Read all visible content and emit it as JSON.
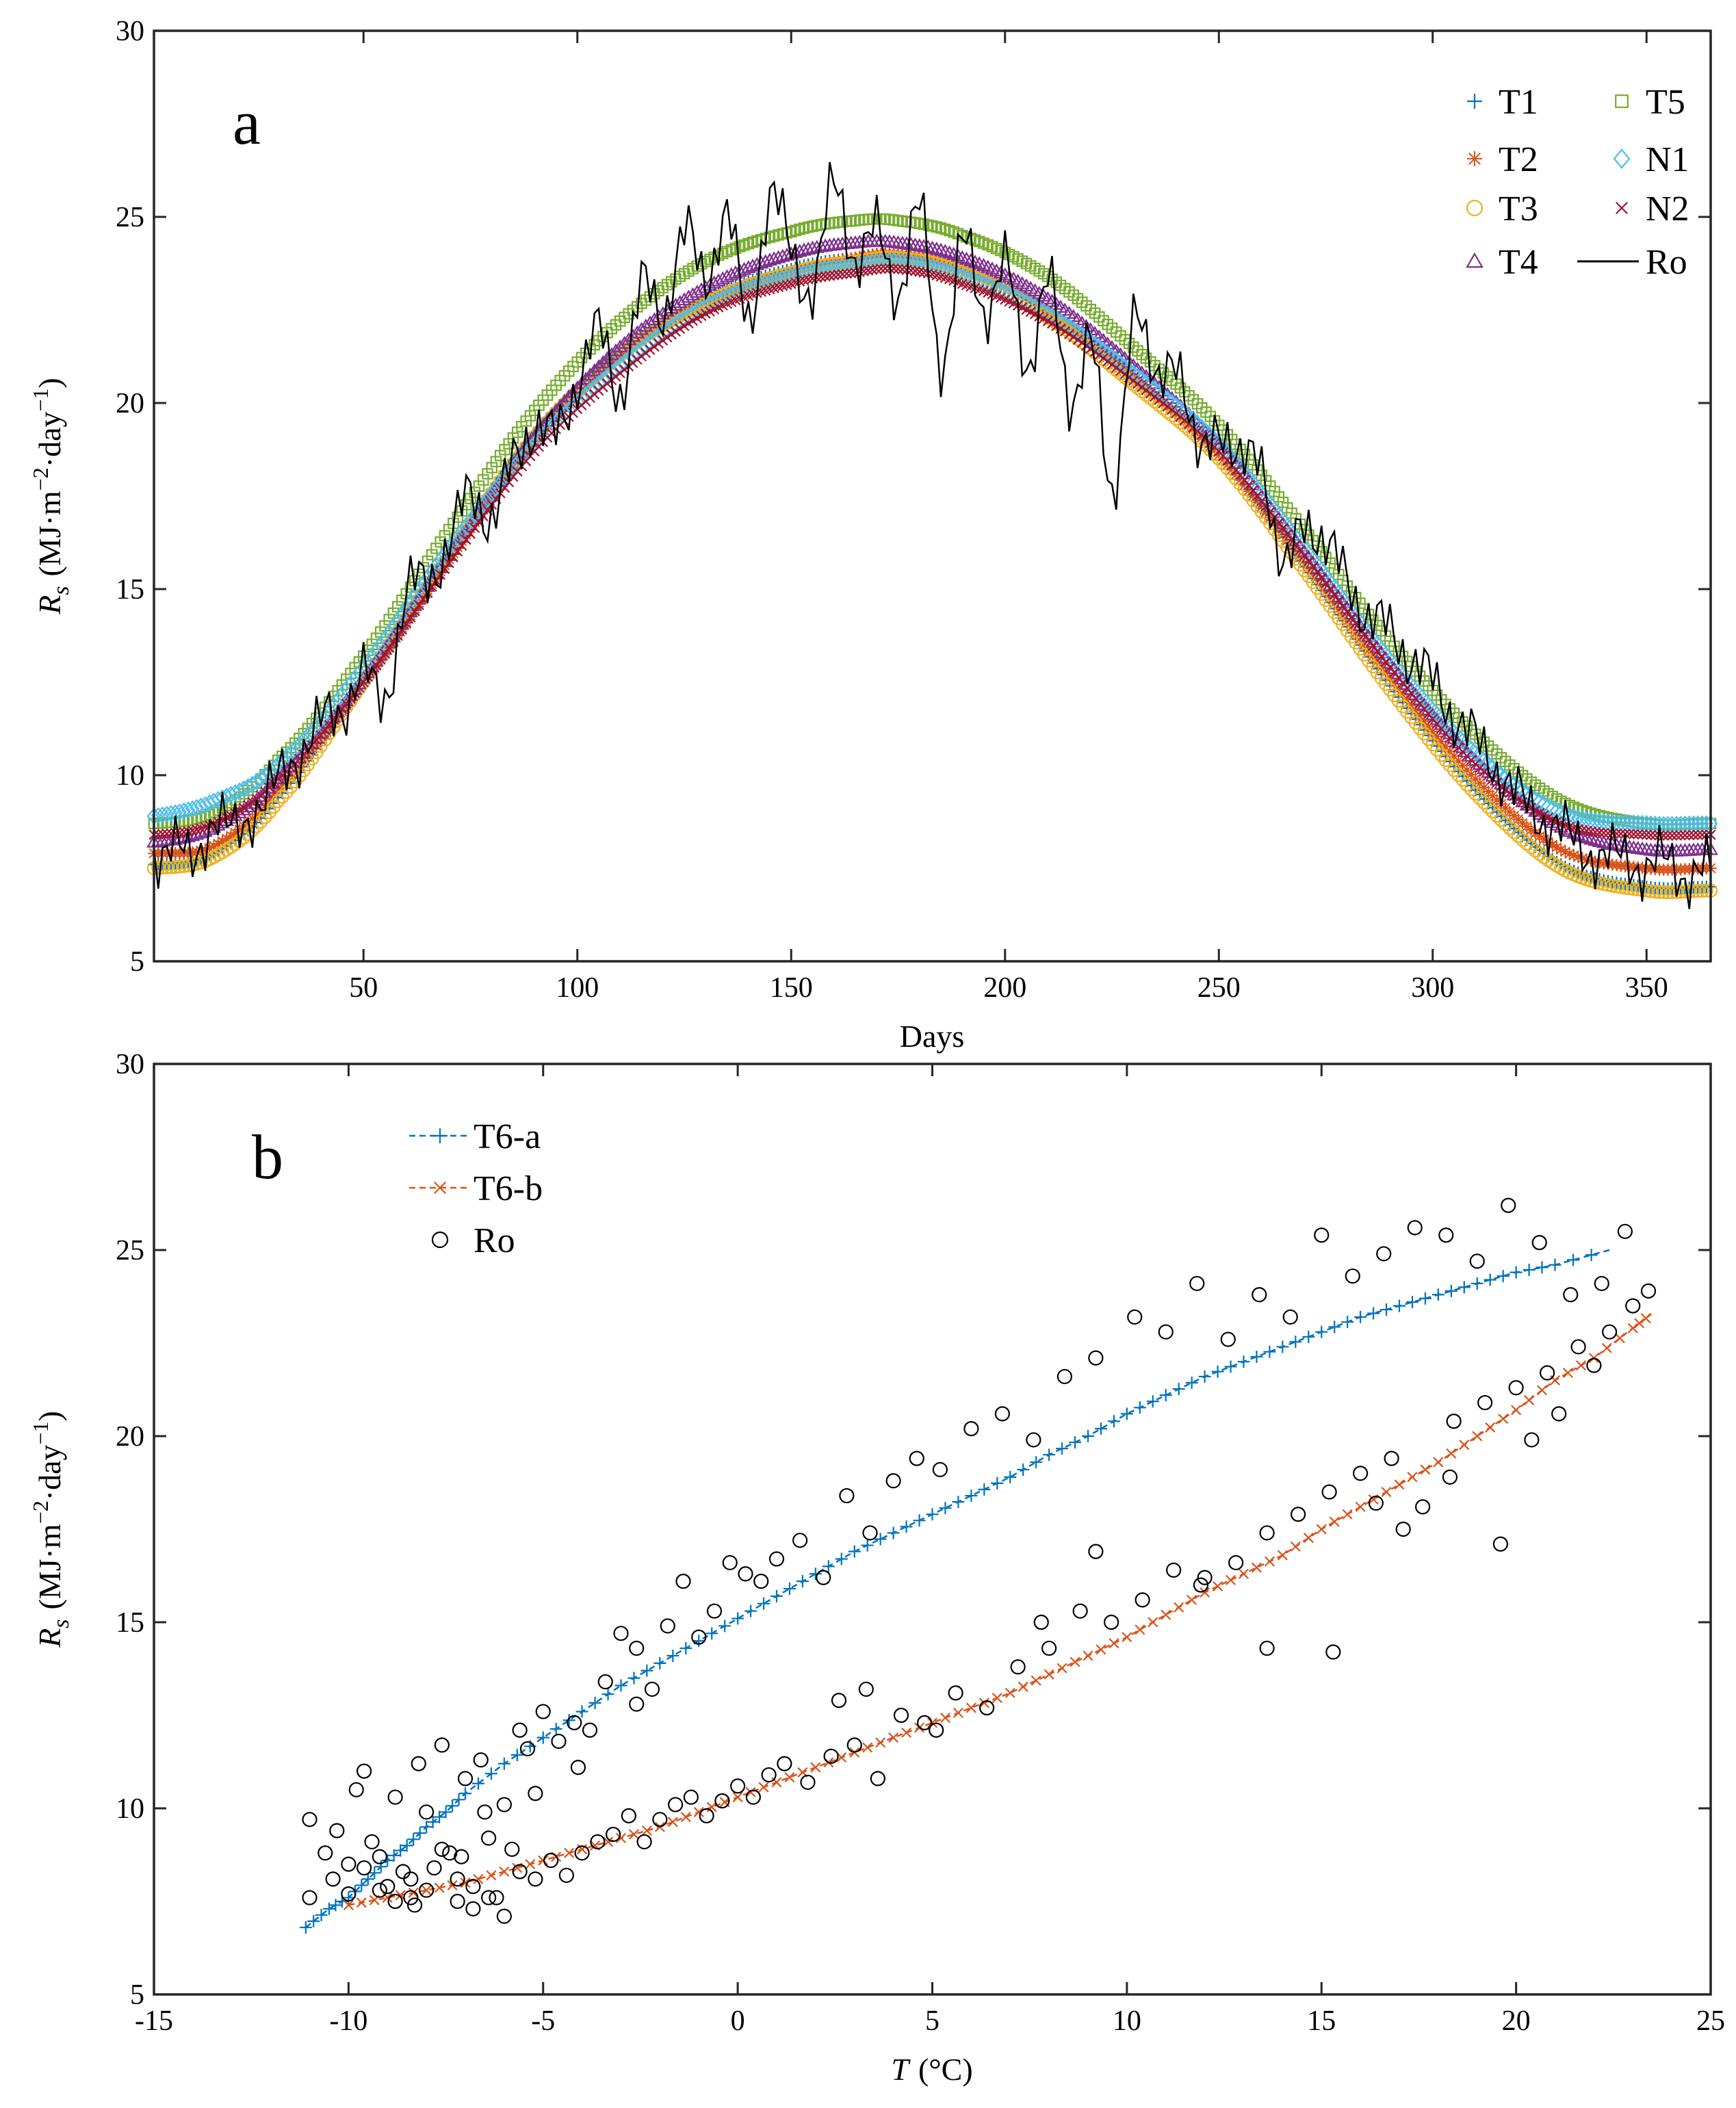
{
  "chart_data": [
    {
      "panel": "a",
      "type": "scatter",
      "xlabel": "Days",
      "ylabel": "R s (MJ·m−2·day−1)",
      "ylabel_parts": {
        "symbol": "R",
        "sub": "s",
        "unit_open": "(MJ·m",
        "exp1": "−2",
        "unit_mid": "·day",
        "exp2": "−1",
        "unit_close": ")"
      },
      "xlim": [
        1,
        365
      ],
      "ylim": [
        5,
        30
      ],
      "xticks": [
        50,
        100,
        150,
        200,
        250,
        300,
        350
      ],
      "yticks": [
        5,
        10,
        15,
        20,
        25,
        30
      ],
      "legend_position": "top-right",
      "note": "Modelled series follow a seasonal curve; each is sampled at every day of year with the anchor values below (cubic interpolation between anchors). Ro is the observed daily series.",
      "series": [
        {
          "name": "T1",
          "marker": "plus",
          "color": "#0072BD",
          "x": [
            1,
            15,
            30,
            50,
            70,
            90,
            110,
            130,
            150,
            165,
            175,
            190,
            210,
            230,
            250,
            270,
            290,
            310,
            330,
            350,
            365
          ],
          "y": [
            7.6,
            7.9,
            9.4,
            12.6,
            16.0,
            19.2,
            21.4,
            22.8,
            23.6,
            23.9,
            24.0,
            23.6,
            22.4,
            20.6,
            18.6,
            15.6,
            12.4,
            9.6,
            7.6,
            7.0,
            7.0
          ]
        },
        {
          "name": "T2",
          "marker": "asterisk",
          "color": "#D95319",
          "x": [
            1,
            15,
            30,
            50,
            70,
            90,
            110,
            130,
            150,
            165,
            175,
            190,
            210,
            230,
            250,
            270,
            290,
            310,
            330,
            350,
            365
          ],
          "y": [
            7.9,
            8.1,
            9.6,
            12.5,
            15.8,
            19.0,
            21.2,
            22.7,
            23.5,
            23.9,
            24.0,
            23.6,
            22.5,
            20.7,
            18.6,
            15.7,
            12.6,
            9.9,
            8.0,
            7.5,
            7.5
          ]
        },
        {
          "name": "T3",
          "marker": "circle",
          "color": "#EDB120",
          "x": [
            1,
            15,
            30,
            50,
            70,
            90,
            110,
            130,
            150,
            165,
            175,
            190,
            210,
            230,
            250,
            270,
            290,
            310,
            330,
            350,
            365
          ],
          "y": [
            7.5,
            7.8,
            9.3,
            12.5,
            15.9,
            19.1,
            21.3,
            22.7,
            23.5,
            23.8,
            23.9,
            23.5,
            22.3,
            20.5,
            18.5,
            15.5,
            12.3,
            9.5,
            7.5,
            6.9,
            6.9
          ]
        },
        {
          "name": "T4",
          "marker": "triangle",
          "color": "#7E2F8E",
          "x": [
            1,
            15,
            30,
            50,
            70,
            90,
            110,
            130,
            150,
            165,
            175,
            190,
            210,
            230,
            250,
            270,
            290,
            310,
            330,
            350,
            365
          ],
          "y": [
            8.2,
            8.6,
            9.9,
            12.6,
            15.9,
            19.1,
            21.5,
            23.1,
            24.0,
            24.3,
            24.3,
            23.9,
            22.8,
            21.0,
            18.9,
            16.0,
            13.0,
            10.4,
            8.6,
            8.0,
            8.0
          ]
        },
        {
          "name": "T5",
          "marker": "square",
          "color": "#77AC30",
          "x": [
            1,
            15,
            30,
            50,
            70,
            90,
            110,
            130,
            150,
            165,
            175,
            190,
            210,
            230,
            250,
            270,
            290,
            310,
            330,
            350,
            365
          ],
          "y": [
            8.7,
            9.0,
            10.4,
            13.2,
            16.6,
            19.8,
            22.2,
            23.8,
            24.6,
            24.9,
            24.9,
            24.5,
            23.4,
            21.5,
            19.4,
            16.6,
            13.6,
            11.1,
            9.3,
            8.7,
            8.7
          ]
        },
        {
          "name": "N1",
          "marker": "diamond",
          "color": "#4DBEEE",
          "x": [
            1,
            15,
            30,
            50,
            70,
            90,
            110,
            130,
            150,
            165,
            175,
            190,
            210,
            230,
            250,
            270,
            290,
            310,
            330,
            350,
            365
          ],
          "y": [
            8.9,
            9.3,
            10.3,
            12.9,
            16.1,
            18.9,
            21.0,
            22.6,
            23.4,
            23.7,
            23.8,
            23.4,
            22.4,
            20.8,
            18.9,
            16.1,
            13.1,
            10.6,
            9.0,
            8.7,
            8.7
          ]
        },
        {
          "name": "N2",
          "marker": "x",
          "color": "#A2142F",
          "x": [
            1,
            15,
            30,
            50,
            70,
            90,
            110,
            130,
            150,
            165,
            175,
            190,
            210,
            230,
            250,
            270,
            290,
            310,
            330,
            350,
            365
          ],
          "y": [
            8.4,
            8.7,
            9.9,
            12.5,
            15.7,
            18.7,
            20.8,
            22.4,
            23.2,
            23.5,
            23.6,
            23.2,
            22.2,
            20.6,
            18.7,
            15.9,
            12.9,
            10.3,
            8.7,
            8.4,
            8.4
          ]
        },
        {
          "name": "Ro",
          "marker": "line",
          "color": "#000000",
          "x": [
            1,
            5,
            10,
            15,
            20,
            25,
            30,
            35,
            40,
            45,
            50,
            55,
            60,
            65,
            70,
            75,
            80,
            85,
            90,
            95,
            100,
            105,
            110,
            115,
            120,
            125,
            130,
            135,
            140,
            145,
            150,
            155,
            160,
            165,
            170,
            175,
            180,
            185,
            190,
            195,
            200,
            205,
            210,
            215,
            220,
            225,
            230,
            235,
            240,
            245,
            250,
            255,
            260,
            265,
            270,
            275,
            280,
            285,
            290,
            295,
            300,
            305,
            310,
            315,
            320,
            325,
            330,
            335,
            340,
            345,
            350,
            355,
            360,
            365
          ],
          "y": [
            7.8,
            8.3,
            7.6,
            8.9,
            8.4,
            9.2,
            9.8,
            10.6,
            11.4,
            11.8,
            12.7,
            12.1,
            14.8,
            15.3,
            16.2,
            17.6,
            16.9,
            18.4,
            19.4,
            19.1,
            20.6,
            21.9,
            20.3,
            23.1,
            22.4,
            24.6,
            23.3,
            25.1,
            22.1,
            25.6,
            24.0,
            23.1,
            25.8,
            23.9,
            24.6,
            23.0,
            25.2,
            21.1,
            24.3,
            22.4,
            23.9,
            20.8,
            23.6,
            19.7,
            22.1,
            17.1,
            22.7,
            20.3,
            21.5,
            18.4,
            19.6,
            18.2,
            18.6,
            15.4,
            16.9,
            16.1,
            15.3,
            14.2,
            13.9,
            13.1,
            12.5,
            11.6,
            10.9,
            10.2,
            9.4,
            8.9,
            8.5,
            8.1,
            7.7,
            7.9,
            7.4,
            7.8,
            7.2,
            7.5
          ]
        }
      ]
    },
    {
      "panel": "b",
      "type": "scatter",
      "xlabel": "T (°C)",
      "xlabel_parts": {
        "symbol": "T",
        "unit": "(°C)"
      },
      "ylabel": "R s (MJ·m−2·day−1)",
      "xlim": [
        -15,
        25
      ],
      "ylim": [
        5,
        30
      ],
      "xticks": [
        -15,
        -10,
        -5,
        0,
        5,
        10,
        15,
        20,
        25
      ],
      "xtick_labels": [
        "-15",
        "-10",
        "-5",
        "0",
        "5",
        "10",
        "15",
        "20",
        "25"
      ],
      "yticks": [
        5,
        10,
        15,
        20,
        25,
        30
      ],
      "legend_position": "top-left",
      "series": [
        {
          "name": "T6-a",
          "marker": "plus",
          "line": "dashed",
          "color": "#0072BD",
          "x": [
            -11.1,
            -10.5,
            -10.0,
            -9.5,
            -9.0,
            -8.5,
            -8.0,
            -7.5,
            -7.0,
            -6.0,
            -5.0,
            -4.0,
            -3.0,
            -2.0,
            -1.0,
            0.0,
            1.0,
            2.0,
            3.0,
            4.0,
            5.0,
            6.0,
            7.0,
            8.0,
            9.0,
            10.0,
            11.0,
            12.0,
            13.0,
            14.0,
            15.0,
            16.0,
            17.0,
            18.0,
            19.0,
            20.0,
            21.0,
            22.4
          ],
          "y": [
            6.8,
            7.3,
            7.6,
            8.1,
            8.6,
            9.0,
            9.5,
            9.9,
            10.4,
            11.2,
            11.9,
            12.6,
            13.3,
            13.9,
            14.5,
            15.1,
            15.7,
            16.3,
            16.9,
            17.4,
            17.9,
            18.4,
            18.9,
            19.5,
            20.0,
            20.6,
            21.1,
            21.6,
            22.0,
            22.4,
            22.8,
            23.2,
            23.5,
            23.8,
            24.1,
            24.4,
            24.6,
            25.0
          ]
        },
        {
          "name": "T6-b",
          "marker": "x",
          "line": "dashed",
          "color": "#D95319",
          "x": [
            -10.0,
            -9.0,
            -8.0,
            -7.0,
            -6.0,
            -5.0,
            -4.0,
            -3.0,
            -2.0,
            -1.0,
            0.0,
            1.0,
            2.0,
            3.0,
            4.0,
            5.0,
            6.0,
            7.0,
            8.0,
            9.0,
            10.0,
            11.0,
            12.0,
            13.0,
            14.0,
            15.0,
            16.0,
            17.0,
            18.0,
            19.0,
            20.0,
            21.0,
            22.0,
            23.0,
            23.5
          ],
          "y": [
            7.4,
            7.6,
            7.8,
            8.0,
            8.3,
            8.6,
            8.9,
            9.2,
            9.5,
            9.9,
            10.3,
            10.7,
            11.1,
            11.5,
            11.9,
            12.3,
            12.7,
            13.1,
            13.6,
            14.1,
            14.6,
            15.2,
            15.8,
            16.3,
            16.8,
            17.5,
            18.1,
            18.7,
            19.3,
            20.0,
            20.7,
            21.5,
            22.1,
            22.9,
            23.3
          ]
        },
        {
          "name": "Ro",
          "marker": "circle-open",
          "color": "#000000",
          "x": [
            -11.0,
            -10.6,
            -10.3,
            -10.0,
            -9.8,
            -9.6,
            -9.4,
            -9.2,
            -9.0,
            -8.8,
            -8.6,
            -8.4,
            -8.2,
            -8.0,
            -7.8,
            -7.6,
            -7.4,
            -7.2,
            -7.0,
            -6.8,
            -6.6,
            -6.4,
            -6.2,
            -6.0,
            -5.8,
            -5.6,
            -5.4,
            -5.2,
            -5.0,
            -4.6,
            -4.2,
            -3.8,
            -3.4,
            -3.0,
            -2.6,
            -2.2,
            -1.8,
            -1.4,
            -1.0,
            -0.6,
            -0.2,
            0.2,
            0.6,
            1.0,
            1.6,
            2.2,
            2.8,
            3.4,
            4.0,
            4.6,
            5.2,
            6.0,
            6.8,
            7.6,
            8.4,
            9.2,
            10.2,
            11.0,
            11.8,
            12.6,
            13.4,
            14.2,
            15.0,
            15.8,
            16.6,
            17.4,
            18.2,
            19.0,
            19.8,
            20.6,
            21.4,
            22.2,
            22.8,
            -11.0,
            -10.4,
            -10.0,
            -9.6,
            -9.2,
            -8.8,
            -8.4,
            -8.0,
            -7.6,
            -7.2,
            -6.8,
            -6.4,
            -6.0,
            -5.6,
            -5.2,
            -4.8,
            -4.4,
            -4.0,
            -3.6,
            -3.2,
            -2.8,
            -2.4,
            -2.0,
            -1.6,
            -1.2,
            -0.8,
            -0.4,
            0.0,
            0.4,
            0.8,
            1.2,
            1.8,
            2.4,
            3.0,
            3.6,
            4.2,
            4.8,
            5.6,
            6.4,
            7.2,
            8.0,
            8.8,
            9.6,
            10.4,
            11.2,
            12.0,
            12.8,
            13.6,
            14.4,
            15.2,
            16.0,
            16.8,
            17.6,
            18.4,
            19.2,
            20.0,
            20.8,
            21.6,
            22.4,
            23.0,
            23.4,
            18.3,
            19.6,
            20.4,
            21.1,
            22.0,
            16.4,
            17.1,
            15.3,
            13.6,
            11.9,
            9.2,
            7.8,
            5.1,
            3.3,
            2.6,
            -2.6,
            -4.1,
            -6.5,
            -7.1,
            -8.3
          ],
          "y": [
            9.7,
            8.8,
            9.4,
            8.5,
            10.5,
            11.0,
            9.1,
            8.7,
            7.9,
            10.3,
            8.3,
            7.6,
            11.2,
            9.9,
            8.4,
            11.7,
            8.8,
            7.5,
            10.8,
            7.9,
            11.3,
            9.2,
            7.6,
            10.1,
            8.9,
            12.1,
            11.6,
            10.4,
            12.6,
            11.8,
            12.3,
            12.1,
            13.4,
            14.7,
            14.3,
            13.2,
            14.9,
            16.1,
            14.6,
            15.3,
            16.6,
            16.3,
            16.1,
            16.7,
            17.2,
            16.2,
            18.4,
            17.4,
            18.8,
            19.4,
            19.1,
            20.2,
            20.6,
            19.9,
            21.6,
            22.1,
            23.2,
            22.8,
            24.1,
            22.6,
            23.8,
            23.2,
            25.4,
            24.3,
            24.9,
            25.6,
            25.4,
            24.7,
            26.2,
            25.2,
            23.8,
            24.1,
            25.5,
            7.6,
            8.1,
            7.7,
            8.4,
            7.8,
            7.5,
            8.1,
            7.8,
            8.9,
            8.1,
            7.3,
            7.6,
            7.1,
            8.3,
            8.1,
            8.6,
            8.2,
            8.8,
            9.1,
            9.3,
            9.8,
            9.1,
            9.7,
            10.1,
            10.3,
            9.8,
            10.2,
            10.6,
            10.3,
            10.9,
            11.2,
            10.7,
            11.4,
            11.7,
            10.8,
            12.5,
            12.3,
            13.1,
            12.7,
            13.8,
            14.3,
            15.3,
            15.0,
            15.6,
            16.4,
            16.2,
            16.6,
            17.4,
            17.9,
            18.5,
            19.0,
            19.4,
            18.1,
            20.4,
            20.9,
            21.3,
            21.7,
            22.4,
            22.8,
            23.5,
            23.9,
            18.9,
            17.1,
            19.9,
            20.6,
            21.9,
            18.2,
            17.5,
            14.2,
            14.3,
            16.0,
            16.9,
            15.0,
            12.1,
            13.2,
            12.9,
            12.8,
            11.1,
            9.9,
            8.7,
            7.4
          ]
        }
      ]
    }
  ]
}
